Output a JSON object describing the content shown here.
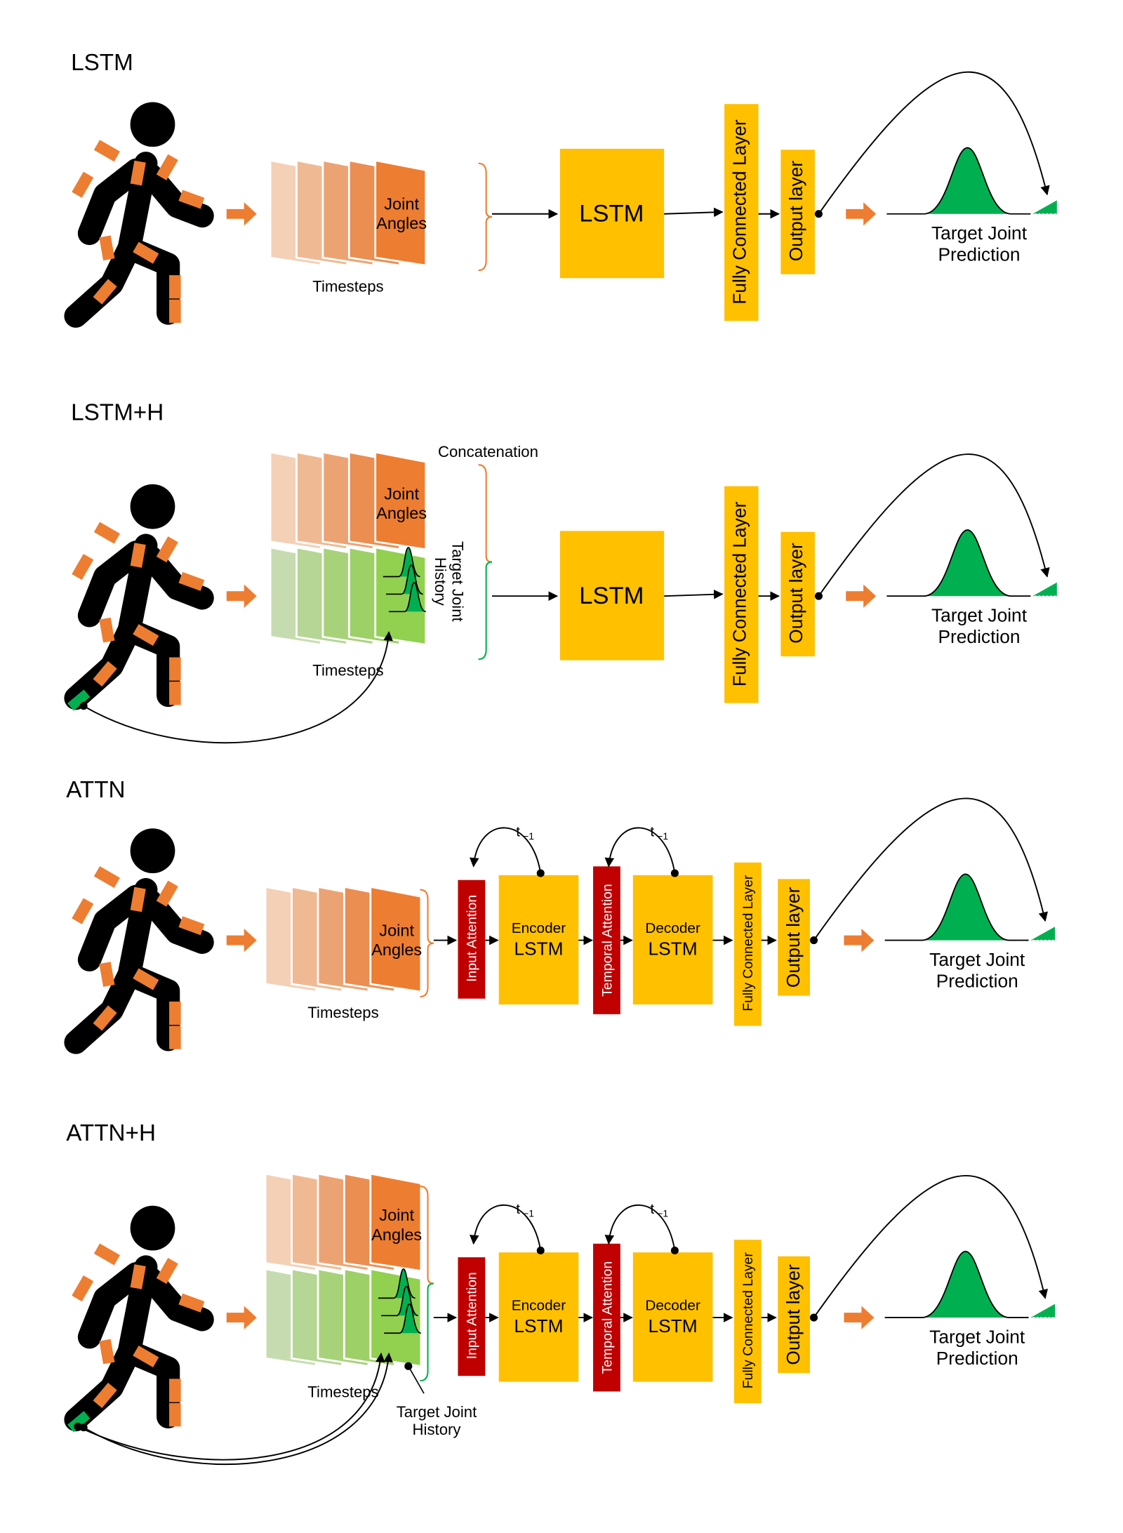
{
  "panels": [
    {
      "title": "LSTM",
      "input": {
        "label": "Joint Angles",
        "timesteps": "Timesteps"
      },
      "model": "LSTM",
      "fully_connected": "Fully Connected Layer",
      "output": "Output layer",
      "prediction": "Target Joint Prediction"
    },
    {
      "title": "LSTM+H",
      "concatenation": "Concatenation",
      "input": {
        "label": "Joint Angles",
        "timesteps": "Timesteps"
      },
      "history": "Target Joint History",
      "model": "LSTM",
      "fully_connected": "Fully Connected Layer",
      "output": "Output layer",
      "prediction": "Target Joint Prediction"
    },
    {
      "title": "ATTN",
      "input": {
        "label": "Joint Angles",
        "timesteps": "Timesteps"
      },
      "input_attention": "Input Attention",
      "encoder": {
        "label": "Encoder",
        "model": "LSTM",
        "feedback": {
          "base": "t",
          "sub": "−1"
        }
      },
      "temporal_attention": "Temporal Attention",
      "decoder": {
        "label": "Decoder",
        "model": "LSTM",
        "feedback": {
          "base": "t",
          "sub": "−1"
        }
      },
      "fully_connected": "Fully Connected Layer",
      "output": "Output layer",
      "prediction": "Target Joint Prediction"
    },
    {
      "title": "ATTN+H",
      "input": {
        "label": "Joint Angles",
        "timesteps": "Timesteps"
      },
      "history": "Target Joint History",
      "input_attention": "Input Attention",
      "encoder": {
        "label": "Encoder",
        "model": "LSTM",
        "feedback": {
          "base": "t",
          "sub": "−1"
        }
      },
      "temporal_attention": "Temporal Attention",
      "decoder": {
        "label": "Decoder",
        "model": "LSTM",
        "feedback": {
          "base": "t",
          "sub": "−1"
        }
      },
      "fully_connected": "Fully Connected Layer",
      "output": "Output layer",
      "prediction": "Target Joint Prediction"
    }
  ]
}
